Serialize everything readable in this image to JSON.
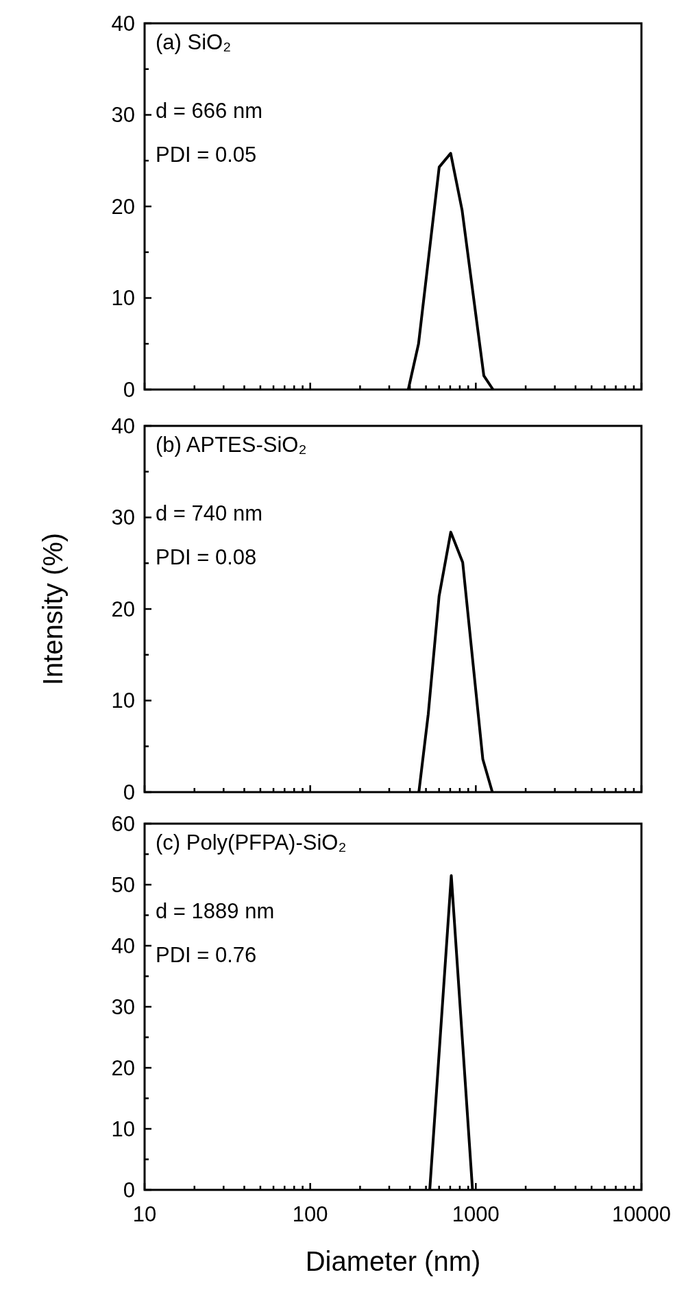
{
  "chart_data": [
    {
      "type": "line",
      "x": [
        391,
        451,
        601,
        705,
        826,
        1118,
        1270
      ],
      "series": [
        {
          "color": "#000000",
          "values": [
            0,
            5.0,
            24.3,
            25.8,
            19.6,
            1.5,
            0
          ]
        }
      ],
      "xlim": [
        10,
        10000
      ],
      "xticks": [
        10,
        {
          "value": 20,
          "label": null
        },
        {
          "value": 30,
          "label": null
        },
        {
          "value": 40,
          "label": null
        },
        {
          "value": 50,
          "label": null
        },
        {
          "value": 60,
          "label": null
        },
        {
          "value": 70,
          "label": null
        },
        {
          "value": 80,
          "label": null
        },
        {
          "value": 90,
          "label": null
        },
        100,
        {
          "value": 200,
          "label": null
        },
        {
          "value": 300,
          "label": null
        },
        {
          "value": 400,
          "label": null
        },
        {
          "value": 500,
          "label": null
        },
        {
          "value": 600,
          "label": null
        },
        {
          "value": 700,
          "label": null
        },
        {
          "value": 800,
          "label": null
        },
        {
          "value": 900,
          "label": null
        },
        1000,
        {
          "value": 2000,
          "label": null
        },
        {
          "value": 3000,
          "label": null
        },
        {
          "value": 4000,
          "label": null
        },
        {
          "value": 5000,
          "label": null
        },
        {
          "value": 6000,
          "label": null
        },
        {
          "value": 7000,
          "label": null
        },
        {
          "value": 8000,
          "label": null
        },
        {
          "value": 9000,
          "label": null
        },
        10000
      ],
      "ylim": [
        0,
        40
      ],
      "yticks": [
        0,
        {
          "value": 5,
          "label": null
        },
        10,
        {
          "value": 15,
          "label": null
        },
        20,
        {
          "value": 25,
          "label": null
        },
        30,
        {
          "value": 35,
          "label": null
        },
        40
      ],
      "log": "x",
      "tick_labels": "y",
      "annotations": [
        "(a) SiO₂",
        "d = 666 nm",
        "PDI = 0.05"
      ]
    },
    {
      "type": "line",
      "x": [
        453,
        516,
        600,
        706,
        833,
        1102,
        1258
      ],
      "series": [
        {
          "color": "#000000",
          "values": [
            0,
            8.5,
            21.4,
            28.4,
            25.1,
            3.6,
            0
          ]
        }
      ],
      "xlim": [
        10,
        10000
      ],
      "xticks": [
        10,
        {
          "value": 20,
          "label": null
        },
        {
          "value": 30,
          "label": null
        },
        {
          "value": 40,
          "label": null
        },
        {
          "value": 50,
          "label": null
        },
        {
          "value": 60,
          "label": null
        },
        {
          "value": 70,
          "label": null
        },
        {
          "value": 80,
          "label": null
        },
        {
          "value": 90,
          "label": null
        },
        100,
        {
          "value": 200,
          "label": null
        },
        {
          "value": 300,
          "label": null
        },
        {
          "value": 400,
          "label": null
        },
        {
          "value": 500,
          "label": null
        },
        {
          "value": 600,
          "label": null
        },
        {
          "value": 700,
          "label": null
        },
        {
          "value": 800,
          "label": null
        },
        {
          "value": 900,
          "label": null
        },
        1000,
        {
          "value": 2000,
          "label": null
        },
        {
          "value": 3000,
          "label": null
        },
        {
          "value": 4000,
          "label": null
        },
        {
          "value": 5000,
          "label": null
        },
        {
          "value": 6000,
          "label": null
        },
        {
          "value": 7000,
          "label": null
        },
        {
          "value": 8000,
          "label": null
        },
        {
          "value": 9000,
          "label": null
        },
        10000
      ],
      "ylim": [
        0,
        40
      ],
      "yticks": [
        0,
        {
          "value": 5,
          "label": null
        },
        10,
        {
          "value": 15,
          "label": null
        },
        20,
        {
          "value": 25,
          "label": null
        },
        30,
        {
          "value": 35,
          "label": null
        },
        40
      ],
      "log": "x",
      "tick_labels": "y",
      "ylabel": "Intensity (%)",
      "annotations": [
        "(b) APTES-SiO₂",
        "d = 740 nm",
        "PDI = 0.08"
      ]
    },
    {
      "type": "line",
      "x": [
        527,
        711,
        955
      ],
      "series": [
        {
          "color": "#000000",
          "values": [
            0,
            51.5,
            0
          ]
        }
      ],
      "xlim": [
        10,
        10000
      ],
      "xticks": [
        10,
        {
          "value": 20,
          "label": null
        },
        {
          "value": 30,
          "label": null
        },
        {
          "value": 40,
          "label": null
        },
        {
          "value": 50,
          "label": null
        },
        {
          "value": 60,
          "label": null
        },
        {
          "value": 70,
          "label": null
        },
        {
          "value": 80,
          "label": null
        },
        {
          "value": 90,
          "label": null
        },
        100,
        {
          "value": 200,
          "label": null
        },
        {
          "value": 300,
          "label": null
        },
        {
          "value": 400,
          "label": null
        },
        {
          "value": 500,
          "label": null
        },
        {
          "value": 600,
          "label": null
        },
        {
          "value": 700,
          "label": null
        },
        {
          "value": 800,
          "label": null
        },
        {
          "value": 900,
          "label": null
        },
        1000,
        {
          "value": 2000,
          "label": null
        },
        {
          "value": 3000,
          "label": null
        },
        {
          "value": 4000,
          "label": null
        },
        {
          "value": 5000,
          "label": null
        },
        {
          "value": 6000,
          "label": null
        },
        {
          "value": 7000,
          "label": null
        },
        {
          "value": 8000,
          "label": null
        },
        {
          "value": 9000,
          "label": null
        },
        10000
      ],
      "ylim": [
        0,
        60
      ],
      "yticks": [
        0,
        {
          "value": 5,
          "label": null
        },
        10,
        {
          "value": 15,
          "label": null
        },
        20,
        {
          "value": 25,
          "label": null
        },
        30,
        {
          "value": 35,
          "label": null
        },
        40,
        {
          "value": 45,
          "label": null
        },
        50,
        {
          "value": 55,
          "label": null
        },
        60
      ],
      "log": "x",
      "xlabel": "Diameter (nm)",
      "annotations": [
        "(c) Poly(PFPA)-SiO₂",
        "d = 1889 nm",
        "PDI = 0.76"
      ]
    }
  ]
}
